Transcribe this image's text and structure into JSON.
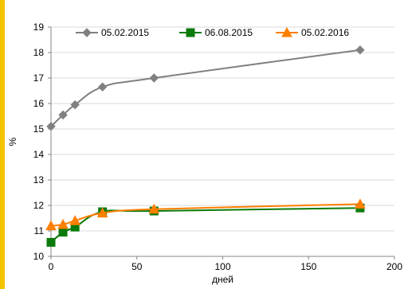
{
  "chart_data": {
    "type": "line",
    "title": "",
    "xlabel": "дней",
    "ylabel": "%",
    "xlim": [
      0,
      200
    ],
    "ylim": [
      10,
      19
    ],
    "x_ticks": [
      "0",
      "50",
      "100",
      "150",
      "200"
    ],
    "y_ticks": [
      "10",
      "11",
      "12",
      "13",
      "14",
      "15",
      "16",
      "17",
      "18",
      "19"
    ],
    "grid": "horizontal",
    "legend_position": "top",
    "series": [
      {
        "name": "05.02.2015",
        "color": "#808080",
        "marker": "diamond",
        "x": [
          0,
          7,
          14,
          30,
          60,
          180
        ],
        "y": [
          15.1,
          15.55,
          15.95,
          16.65,
          17.0,
          18.1
        ]
      },
      {
        "name": "06.08.2015",
        "color": "#0a7a0a",
        "marker": "square",
        "x": [
          0,
          7,
          14,
          30,
          60,
          180
        ],
        "y": [
          10.55,
          10.95,
          11.15,
          11.75,
          11.78,
          11.9
        ]
      },
      {
        "name": "05.02.2016",
        "color": "#ff7f00",
        "marker": "triangle",
        "x": [
          0,
          7,
          14,
          30,
          60,
          180
        ],
        "y": [
          11.2,
          11.25,
          11.4,
          11.7,
          11.85,
          12.05
        ]
      }
    ]
  }
}
